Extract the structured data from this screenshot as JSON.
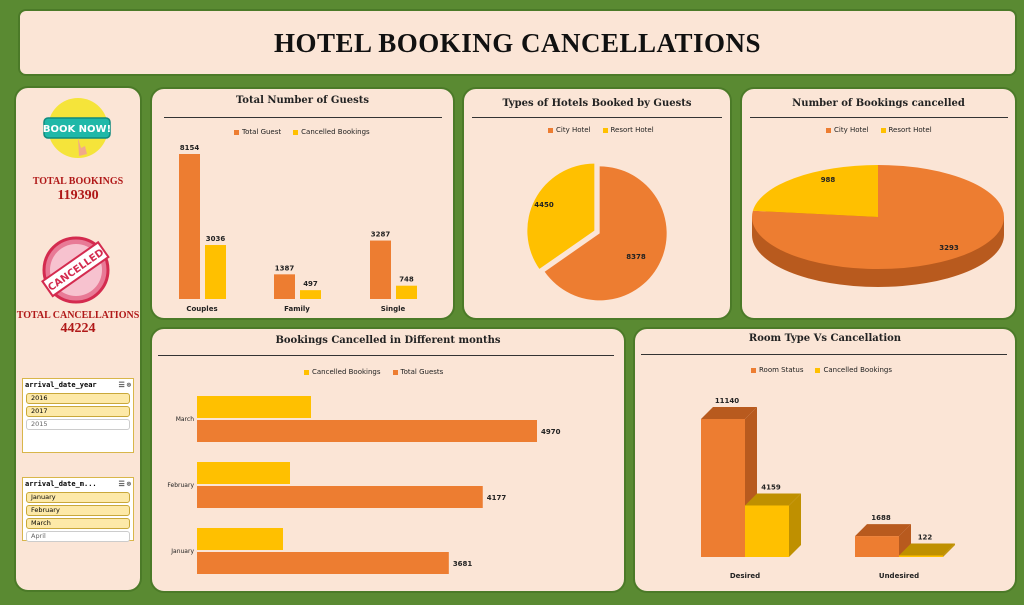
{
  "title": "HOTEL BOOKING CANCELLATIONS",
  "colors": {
    "orange": "#ed7d31",
    "yellow": "#ffc000",
    "dark_orange": "#b85a1e",
    "dark_yellow": "#bf9000"
  },
  "sidebar": {
    "book_now_badge": {
      "text": "BOOK NOW!",
      "icon": "book-now-icon"
    },
    "cancelled_stamp": {
      "text": "CANCELLED",
      "icon": "cancelled-stamp-icon"
    },
    "total_bookings_label": "TOTAL BOOKINGS",
    "total_bookings_value": "119390",
    "total_cancellations_label": "TOTAL CANCELLATIONS",
    "total_cancellations_value": "44224",
    "slicer_year": {
      "header": "arrival_date_year",
      "items": [
        {
          "label": "2016",
          "selected": true
        },
        {
          "label": "2017",
          "selected": true
        },
        {
          "label": "2015",
          "selected": false
        }
      ]
    },
    "slicer_month": {
      "header": "arrival_date_m...",
      "items": [
        {
          "label": "January",
          "selected": true
        },
        {
          "label": "February",
          "selected": true
        },
        {
          "label": "March",
          "selected": true
        },
        {
          "label": "April",
          "selected": false
        }
      ]
    }
  },
  "chart_data": [
    {
      "type": "bar",
      "title": "Total Number of Guests",
      "categories": [
        "Couples",
        "Family",
        "Single"
      ],
      "series": [
        {
          "name": "Total Guest",
          "values": [
            8154,
            1387,
            3287
          ]
        },
        {
          "name": "Cancelled Bookings",
          "values": [
            3036,
            497,
            748
          ]
        }
      ]
    },
    {
      "type": "pie",
      "title": "Types of Hotels Booked by Guests",
      "labels": [
        "City Hotel",
        "Resort Hotel"
      ],
      "values": [
        8378,
        4450
      ]
    },
    {
      "type": "pie",
      "title": "Number of Bookings cancelled",
      "labels": [
        "City Hotel",
        "Resort Hotel"
      ],
      "values": [
        3293,
        988
      ]
    },
    {
      "type": "bar",
      "orientation": "horizontal",
      "title": "Bookings Cancelled in Different months",
      "categories": [
        "March",
        "February",
        "January"
      ],
      "series": [
        {
          "name": "Cancelled Bookings",
          "values": [
            null,
            null,
            null
          ]
        },
        {
          "name": "Total Guests",
          "values": [
            4970,
            4177,
            3681
          ]
        }
      ]
    },
    {
      "type": "bar",
      "title": "Room Type Vs Cancellation",
      "categories": [
        "Desired",
        "Undesired"
      ],
      "series": [
        {
          "name": "Room Status",
          "values": [
            11140,
            1688
          ]
        },
        {
          "name": "Cancelled Bookings",
          "values": [
            4159,
            122
          ]
        }
      ]
    }
  ]
}
